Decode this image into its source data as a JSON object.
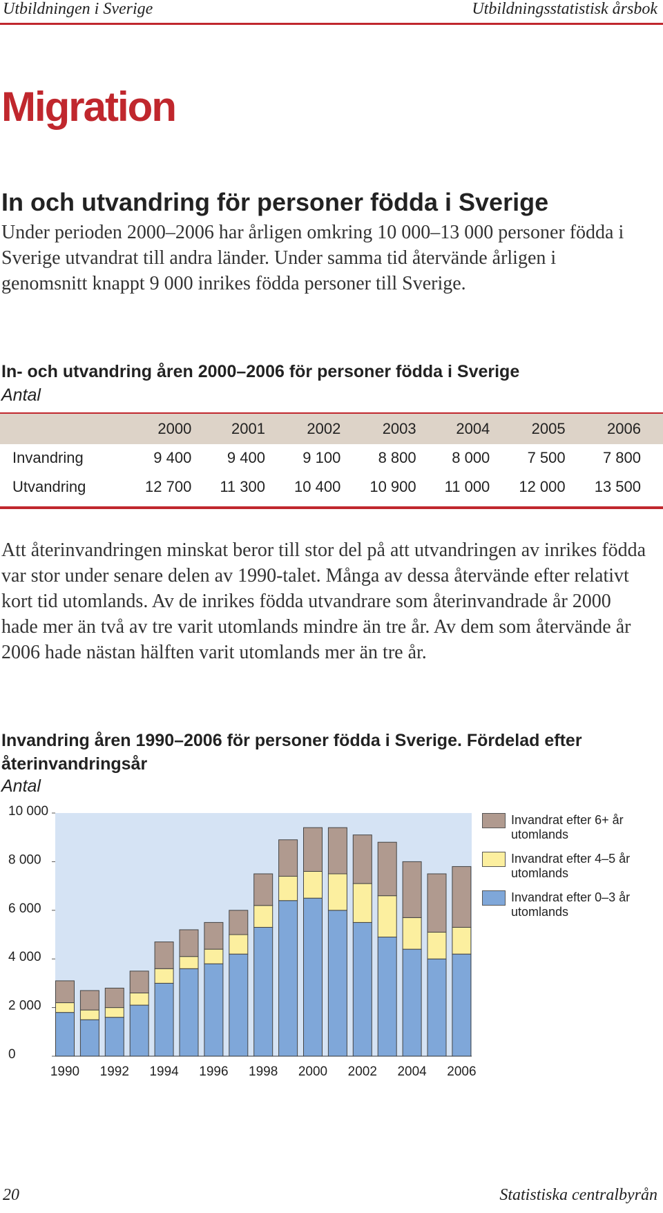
{
  "header": {
    "left": "Utbildningen i Sverige",
    "right": "Utbildningsstatistisk årsbok"
  },
  "title": "Migration",
  "section": {
    "heading": "In och utvandring för personer födda i Sverige",
    "paragraph": "Under perioden 2000–2006 har årligen omkring 10 000–13 000 personer födda i Sverige utvandrat till andra länder. Under samma tid återvände årligen i genomsnitt knappt 9 000 inrikes födda personer till Sverige."
  },
  "table": {
    "title": "In- och utvandring åren 2000–2006 för personer födda i Sverige",
    "unit": "Antal",
    "columns": [
      "2000",
      "2001",
      "2002",
      "2003",
      "2004",
      "2005",
      "2006"
    ],
    "rows": [
      [
        "Invandring",
        "9 400",
        "9 400",
        "9 100",
        "8 800",
        "8 000",
        "7 500",
        "7 800"
      ],
      [
        "Utvandring",
        "12 700",
        "11 300",
        "10 400",
        "10 900",
        "11 000",
        "12 000",
        "13 500"
      ]
    ]
  },
  "paragraph2": "Att återinvandringen minskat beror till stor del på att utvandringen av inrikes födda var stor under senare delen av 1990-talet. Många av dessa återvände efter relativt kort tid utomlands. Av de inrikes födda utvandrare som återinvandrade år 2000 hade mer än två av tre varit utomlands mindre än tre år. Av dem som återvände år 2006 hade nästan hälften varit utomlands mer än tre år.",
  "chart_data": {
    "type": "bar",
    "stacked": true,
    "title": "Invandring åren 1990–2006 för personer födda i Sverige. Fördelad efter återinvandringsår",
    "unit": "Antal",
    "categories": [
      "1990",
      null,
      "1992",
      null,
      "1994",
      null,
      "1996",
      null,
      "1998",
      null,
      "2000",
      null,
      "2002",
      null,
      "2004",
      null,
      "2006"
    ],
    "series": [
      {
        "name": "Invandrat efter 6+ år utomlands",
        "color": "#b09a8f",
        "values": [
          900,
          800,
          800,
          900,
          1100,
          1100,
          1100,
          1000,
          1300,
          1500,
          1800,
          1900,
          2000,
          2200,
          2300,
          2400,
          2500
        ]
      },
      {
        "name": "Invandrat efter 4–5 år utomlands",
        "color": "#fcef9f",
        "values": [
          400,
          400,
          400,
          500,
          600,
          500,
          600,
          800,
          900,
          1000,
          1100,
          1500,
          1600,
          1700,
          1300,
          1100,
          1100
        ]
      },
      {
        "name": "Invandrat efter 0–3 år utomlands",
        "color": "#7fa7d9",
        "values": [
          1800,
          1500,
          1600,
          2100,
          3000,
          3600,
          3800,
          4200,
          5300,
          6400,
          6500,
          6000,
          5500,
          4900,
          4400,
          4000,
          4200
        ]
      }
    ],
    "ylim": [
      0,
      10000
    ],
    "yticks": [
      0,
      {
        "value": 2000,
        "label": "2 000"
      },
      {
        "value": 4000,
        "label": "4 000"
      },
      {
        "value": 6000,
        "label": "6 000"
      },
      {
        "value": 8000,
        "label": "8 000"
      },
      {
        "value": 10000,
        "label": "10 000"
      }
    ],
    "grid": false,
    "background": "#d5e3f4"
  },
  "footer": {
    "left": "20",
    "right": "Statistiska centralbyrån"
  }
}
